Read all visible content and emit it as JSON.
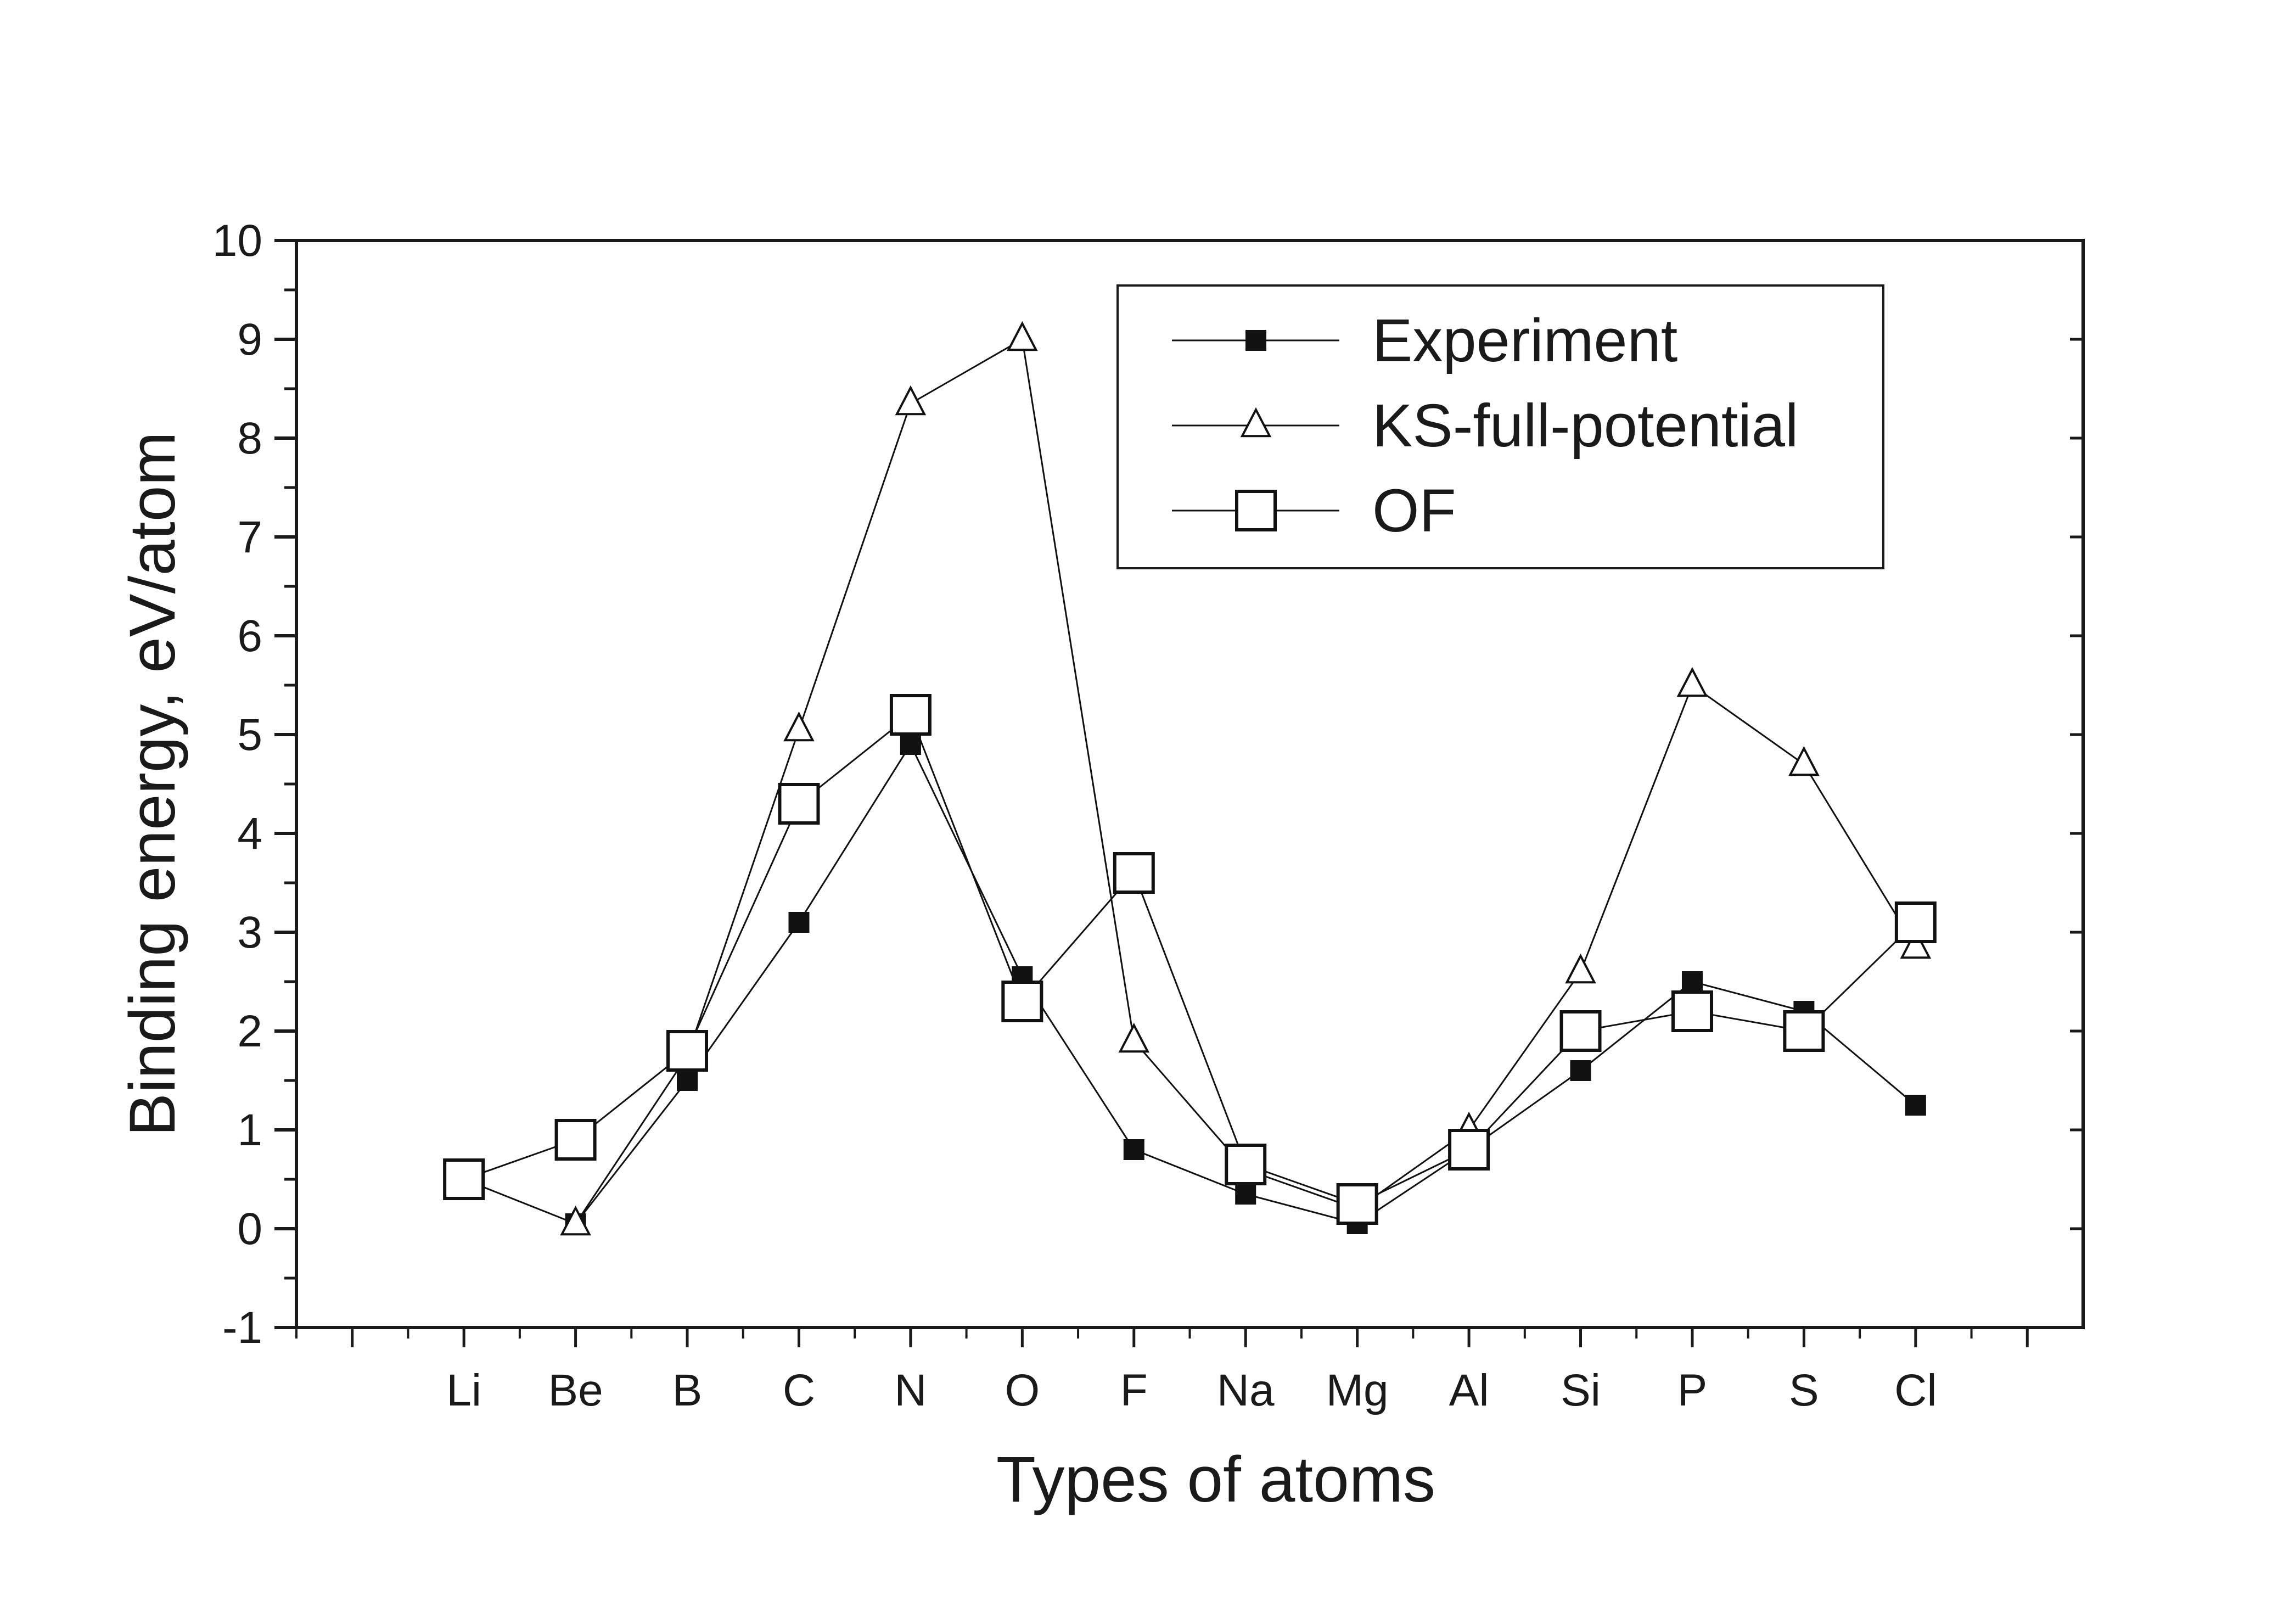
{
  "chart_data": {
    "type": "line",
    "title": "",
    "xlabel": "Types of atoms",
    "ylabel": "Binding energy, eV/atom",
    "categories": [
      "Li",
      "Be",
      "B",
      "C",
      "N",
      "O",
      "F",
      "Na",
      "Mg",
      "Al",
      "Si",
      "P",
      "S",
      "Cl"
    ],
    "ylim": [
      -1,
      10
    ],
    "yticks": [
      -1,
      0,
      1,
      2,
      3,
      4,
      5,
      6,
      7,
      8,
      9,
      10
    ],
    "grid": false,
    "legend_position": "top-right",
    "series": [
      {
        "name": "Experiment",
        "marker": "filled-square",
        "color": "#111111",
        "values": [
          null,
          0.05,
          1.5,
          3.1,
          4.9,
          2.55,
          0.8,
          0.35,
          0.05,
          0.8,
          1.6,
          2.5,
          2.2,
          1.25
        ]
      },
      {
        "name": "KS-full-potential",
        "marker": "open-triangle",
        "color": "#111111",
        "values": [
          0.5,
          0.05,
          1.75,
          5.05,
          8.35,
          9.0,
          1.9,
          0.6,
          0.2,
          1.0,
          2.6,
          5.5,
          4.7,
          2.85
        ]
      },
      {
        "name": "OF",
        "marker": "open-square",
        "color": "#111111",
        "values": [
          0.5,
          0.9,
          1.8,
          4.3,
          5.2,
          2.3,
          3.6,
          0.65,
          0.25,
          0.8,
          2.0,
          2.2,
          2.0,
          3.1
        ]
      }
    ]
  }
}
